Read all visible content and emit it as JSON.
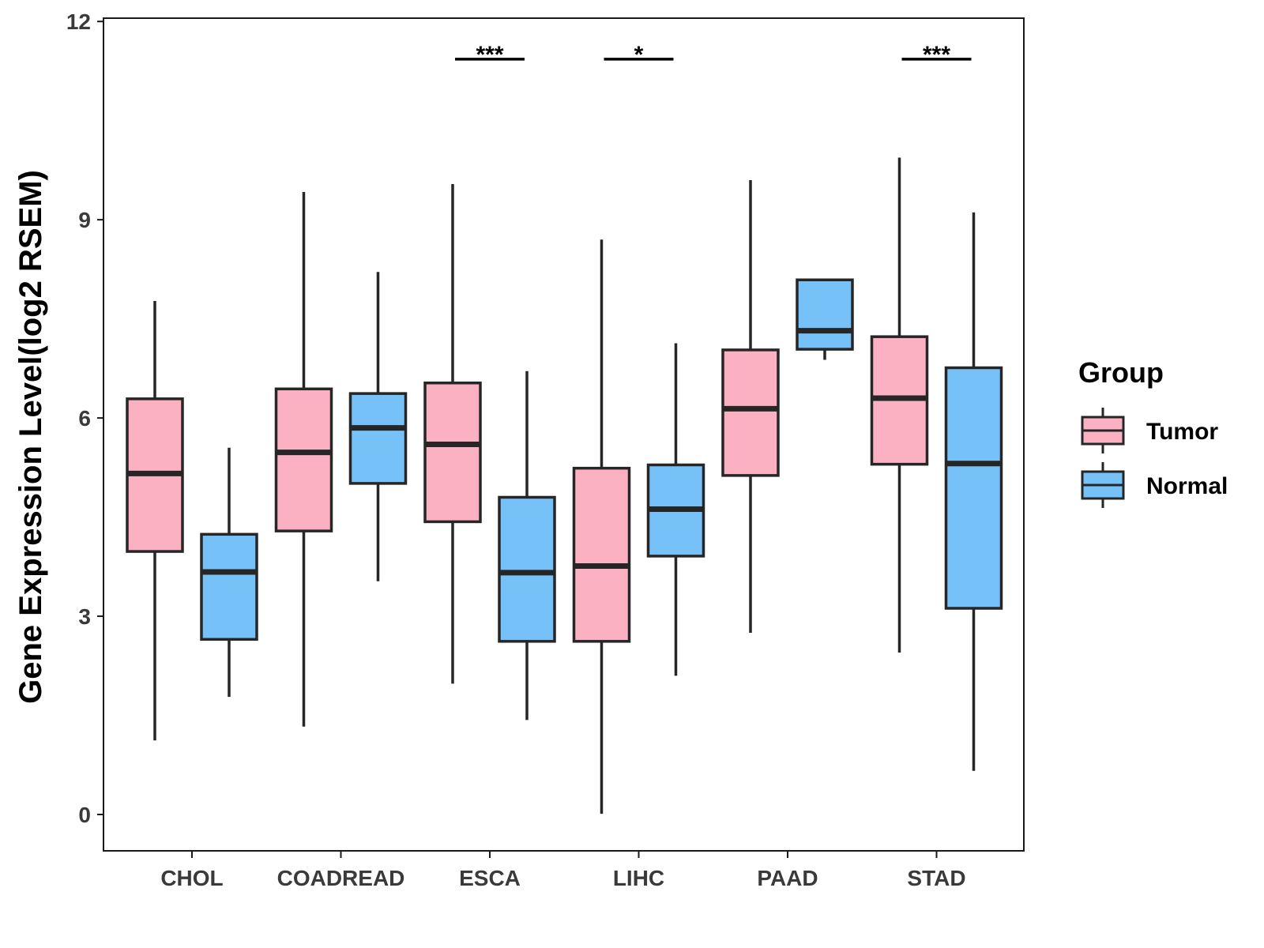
{
  "chart_data": {
    "type": "boxplot",
    "title": "",
    "xlabel": "",
    "ylabel": "Gene Expression Level(log2 RSEM)",
    "ylim": [
      -0.55,
      12.05
    ],
    "yticks": [
      0,
      3,
      6,
      9,
      12
    ],
    "grid": false,
    "categories": [
      "CHOL",
      "COADREAD",
      "ESCA",
      "LIHC",
      "PAAD",
      "STAD"
    ],
    "legend": {
      "title": "Group",
      "position": "right",
      "entries": [
        {
          "name": "Tumor",
          "color": "#FBB1C2"
        },
        {
          "name": "Normal",
          "color": "#76C1F7"
        }
      ]
    },
    "series": [
      {
        "name": "Tumor",
        "color": "#FBB1C2",
        "boxes": [
          {
            "category": "CHOL",
            "min": 1.12,
            "q1": 3.98,
            "median": 5.16,
            "q3": 6.29,
            "max": 7.77
          },
          {
            "category": "COADREAD",
            "min": 1.33,
            "q1": 4.29,
            "median": 5.48,
            "q3": 6.44,
            "max": 9.42
          },
          {
            "category": "ESCA",
            "min": 1.98,
            "q1": 4.43,
            "median": 5.6,
            "q3": 6.53,
            "max": 9.54
          },
          {
            "category": "LIHC",
            "min": 0.01,
            "q1": 2.62,
            "median": 3.76,
            "q3": 5.24,
            "max": 8.7
          },
          {
            "category": "PAAD",
            "min": 2.75,
            "q1": 5.13,
            "median": 6.14,
            "q3": 7.03,
            "max": 9.6
          },
          {
            "category": "STAD",
            "min": 2.45,
            "q1": 5.3,
            "median": 6.3,
            "q3": 7.23,
            "max": 9.94
          }
        ]
      },
      {
        "name": "Normal",
        "color": "#76C1F7",
        "boxes": [
          {
            "category": "CHOL",
            "min": 1.78,
            "q1": 2.65,
            "median": 3.67,
            "q3": 4.24,
            "max": 5.55
          },
          {
            "category": "COADREAD",
            "min": 3.53,
            "q1": 5.01,
            "median": 5.85,
            "q3": 6.37,
            "max": 8.21
          },
          {
            "category": "ESCA",
            "min": 1.43,
            "q1": 2.62,
            "median": 3.66,
            "q3": 4.8,
            "max": 6.71
          },
          {
            "category": "LIHC",
            "min": 2.1,
            "q1": 3.91,
            "median": 4.62,
            "q3": 5.29,
            "max": 7.13
          },
          {
            "category": "PAAD",
            "min": 6.88,
            "q1": 7.04,
            "median": 7.32,
            "q3": 8.09,
            "max": 8.09
          },
          {
            "category": "STAD",
            "min": 0.66,
            "q1": 3.12,
            "median": 5.31,
            "q3": 6.76,
            "max": 9.11
          }
        ]
      }
    ],
    "annotations": [
      {
        "category": "ESCA",
        "text": "***",
        "y": 11.43
      },
      {
        "category": "LIHC",
        "text": "*",
        "y": 11.43
      },
      {
        "category": "STAD",
        "text": "***",
        "y": 11.43
      }
    ]
  }
}
